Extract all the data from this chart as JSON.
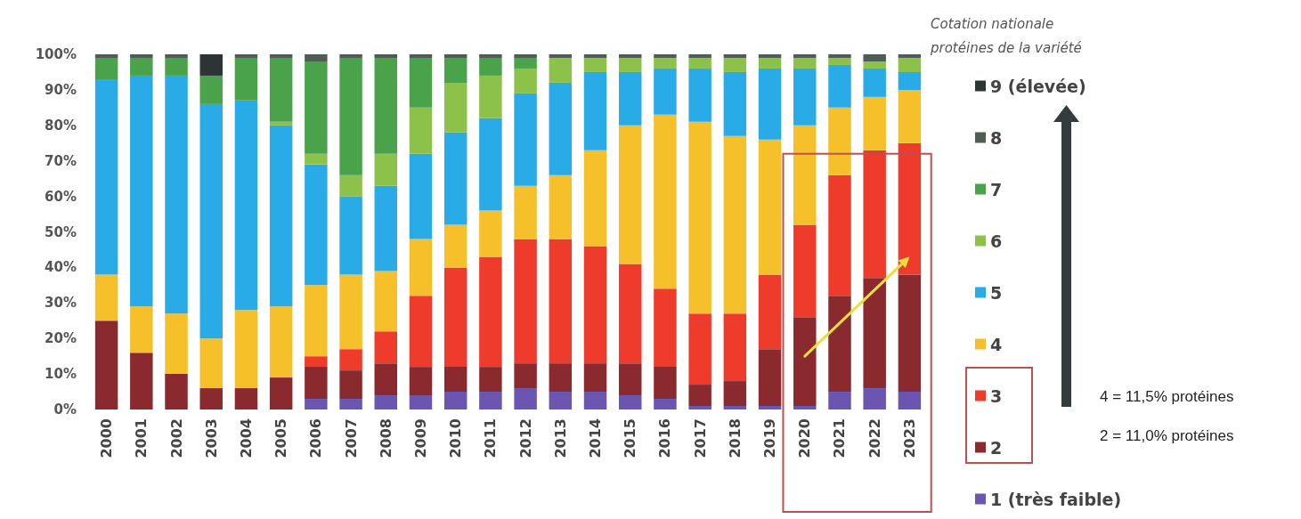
{
  "chart_data": {
    "type": "bar",
    "stacked": true,
    "legend_title": "Cotation nationale protéines de la variété",
    "legend": "right",
    "categories": [
      "2000",
      "2001",
      "2002",
      "2003",
      "2004",
      "2005",
      "2006",
      "2007",
      "2008",
      "2009",
      "2010",
      "2011",
      "2012",
      "2013",
      "2014",
      "2015",
      "2016",
      "2017",
      "2018",
      "2019",
      "2020",
      "2021",
      "2022",
      "2023"
    ],
    "ylim": [
      0,
      100
    ],
    "yticks": [
      {
        "value": 0,
        "label": "0%"
      },
      {
        "value": 10,
        "label": "10%"
      },
      {
        "value": 20,
        "label": "20%"
      },
      {
        "value": 30,
        "label": "30%"
      },
      {
        "value": 40,
        "label": "40%"
      },
      {
        "value": 50,
        "label": "50%"
      },
      {
        "value": 60,
        "label": "60%"
      },
      {
        "value": 70,
        "label": "70%"
      },
      {
        "value": 80,
        "label": "80%"
      },
      {
        "value": 90,
        "label": "90%"
      },
      {
        "value": 100,
        "label": "100%"
      }
    ],
    "series": [
      {
        "name": "1 (très faible)",
        "color": "#6a55b0",
        "values": [
          0,
          0,
          0,
          0,
          0,
          0,
          3,
          3,
          4,
          4,
          5,
          5,
          6,
          5,
          5,
          4,
          3,
          1,
          1,
          1,
          1,
          5,
          6,
          5
        ]
      },
      {
        "name": "2",
        "color": "#8b2a2e",
        "values": [
          25,
          16,
          10,
          6,
          6,
          9,
          9,
          8,
          9,
          8,
          7,
          7,
          7,
          8,
          8,
          9,
          9,
          6,
          7,
          16,
          25,
          27,
          31,
          33
        ]
      },
      {
        "name": "3",
        "color": "#ee3b2c",
        "values": [
          0,
          0,
          0,
          0,
          0,
          0,
          3,
          6,
          9,
          20,
          28,
          31,
          35,
          35,
          33,
          28,
          22,
          20,
          19,
          21,
          26,
          34,
          36,
          37
        ]
      },
      {
        "name": "4",
        "color": "#f5c02a",
        "values": [
          13,
          13,
          17,
          14,
          22,
          20,
          20,
          21,
          17,
          16,
          12,
          13,
          15,
          18,
          27,
          39,
          49,
          54,
          50,
          38,
          28,
          19,
          15,
          15
        ]
      },
      {
        "name": "5",
        "color": "#29abe8",
        "values": [
          55,
          65,
          67,
          66,
          59,
          51,
          34,
          22,
          24,
          24,
          26,
          26,
          26,
          26,
          22,
          15,
          13,
          15,
          18,
          20,
          16,
          12,
          8,
          5
        ]
      },
      {
        "name": "6",
        "color": "#8dc24a",
        "values": [
          0,
          0,
          0,
          0,
          0,
          1,
          3,
          6,
          9,
          13,
          14,
          12,
          7,
          7,
          4,
          4,
          3,
          3,
          4,
          3,
          3,
          2,
          2,
          4
        ]
      },
      {
        "name": "7",
        "color": "#4aa24a",
        "values": [
          6,
          5,
          5,
          8,
          12,
          18,
          26,
          33,
          27,
          14,
          7,
          5,
          3,
          0,
          0,
          0,
          0,
          0,
          0,
          0,
          0,
          0,
          0,
          0
        ]
      },
      {
        "name": "8",
        "color": "#4f5e52",
        "values": [
          1,
          1,
          1,
          0,
          1,
          1,
          2,
          1,
          1,
          1,
          1,
          1,
          1,
          1,
          1,
          1,
          1,
          1,
          1,
          1,
          1,
          1,
          2,
          1
        ]
      },
      {
        "name": "9 (élevée)",
        "color": "#2d3436",
        "values": [
          0,
          0,
          0,
          6,
          0,
          0,
          0,
          0,
          0,
          0,
          0,
          0,
          0,
          0,
          0,
          0,
          0,
          0,
          0,
          0,
          0,
          0,
          0,
          0
        ]
      }
    ],
    "annotations": [
      "4 = 11,5% protéines",
      "2 = 11,0% protéines"
    ]
  }
}
